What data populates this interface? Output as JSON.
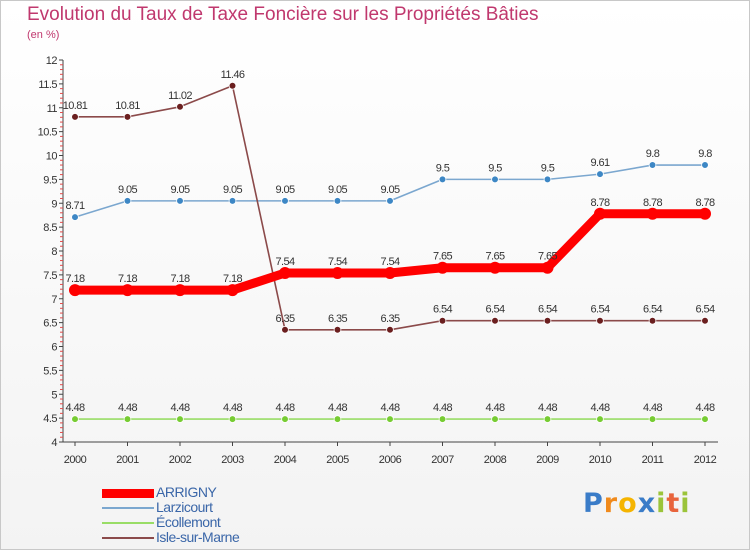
{
  "chart_data": {
    "type": "line",
    "title": "Evolution du Taux de Taxe Foncière sur les Propriétés Bâties",
    "unit_label": "(en %)",
    "xlabel": "",
    "ylabel": "",
    "x": [
      "2000",
      "2001",
      "2002",
      "2003",
      "2004",
      "2005",
      "2006",
      "2007",
      "2008",
      "2009",
      "2010",
      "2011",
      "2012"
    ],
    "ylim": [
      4,
      12
    ],
    "yticks": [
      "4",
      "4.5",
      "5",
      "5.5",
      "6",
      "6.5",
      "7",
      "7.5",
      "8",
      "8.5",
      "9",
      "9.5",
      "10",
      "10.5",
      "11",
      "11.5",
      "12"
    ],
    "grid": false,
    "legend_position": "bottom-left",
    "series": [
      {
        "name": "ARRIGNY",
        "color": "#ff0000",
        "point_color": "#ff0000",
        "emphasis": true,
        "values": [
          7.18,
          7.18,
          7.18,
          7.18,
          7.54,
          7.54,
          7.54,
          7.65,
          7.65,
          7.65,
          8.78,
          8.78,
          8.78
        ],
        "labels": [
          "7.18",
          "7.18",
          "7.18",
          "7.18",
          "7.54",
          "7.54",
          "7.54",
          "7.65",
          "7.65",
          "7.65",
          "8.78",
          "8.78",
          "8.78"
        ]
      },
      {
        "name": "Larzicourt",
        "color": "#7ba7cf",
        "point_color": "#3d87c5",
        "emphasis": false,
        "values": [
          8.71,
          9.05,
          9.05,
          9.05,
          9.05,
          9.05,
          9.05,
          9.5,
          9.5,
          9.5,
          9.61,
          9.8,
          9.8
        ],
        "labels": [
          "8.71",
          "9.05",
          "9.05",
          "9.05",
          "9.05",
          "9.05",
          "9.05",
          "9.5",
          "9.5",
          "9.5",
          "9.61",
          "9.8",
          "9.8"
        ]
      },
      {
        "name": "Écollemont",
        "color": "#99dd66",
        "point_color": "#77cc33",
        "emphasis": false,
        "values": [
          4.48,
          4.48,
          4.48,
          4.48,
          4.48,
          4.48,
          4.48,
          4.48,
          4.48,
          4.48,
          4.48,
          4.48,
          4.48
        ],
        "labels": [
          "4.48",
          "4.48",
          "4.48",
          "4.48",
          "4.48",
          "4.48",
          "4.48",
          "4.48",
          "4.48",
          "4.48",
          "4.48",
          "4.48",
          "4.48"
        ]
      },
      {
        "name": "Isle-sur-Marne",
        "color": "#8b4a4a",
        "point_color": "#6b1f1f",
        "emphasis": false,
        "values": [
          10.81,
          10.81,
          11.02,
          11.46,
          6.35,
          6.35,
          6.35,
          6.54,
          6.54,
          6.54,
          6.54,
          6.54,
          6.54
        ],
        "labels": [
          "10.81",
          "10.81",
          "11.02",
          "11.46",
          "6.35",
          "6.35",
          "6.35",
          "6.54",
          "6.54",
          "6.54",
          "6.54",
          "6.54",
          "6.54"
        ]
      }
    ]
  },
  "branding": {
    "logo_letters": [
      "P",
      "r",
      "o",
      "x",
      "i",
      "t",
      "i"
    ],
    "logo_colors": [
      "#3a7cc8",
      "#f08a1c",
      "#f5b400",
      "#3a7cc8",
      "#9bc43a",
      "#e8643c",
      "#9bc43a"
    ]
  }
}
